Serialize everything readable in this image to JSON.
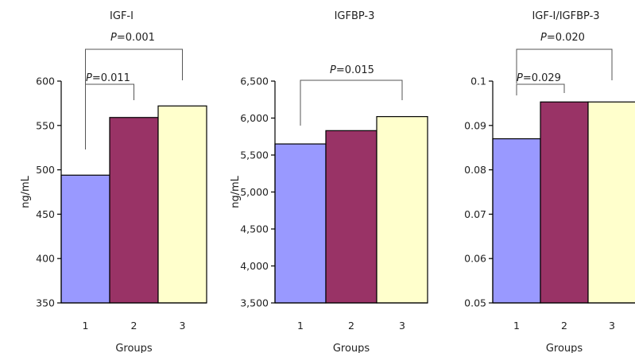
{
  "chart_data": [
    {
      "type": "bar",
      "title": "IGF-I",
      "xlabel": "Groups",
      "ylabel": "ng/mL",
      "categories": [
        "1",
        "2",
        "3"
      ],
      "values": [
        494,
        559,
        572
      ],
      "colors": [
        "#9999ff",
        "#993366",
        "#ffffcc"
      ],
      "ylim": [
        350,
        600
      ],
      "yticks": [
        350,
        400,
        450,
        500,
        550,
        600
      ],
      "ytick_labels": [
        "350",
        "400",
        "450",
        "500",
        "550",
        "600"
      ],
      "grid": false,
      "comparisons": [
        {
          "groups": [
            "1",
            "3"
          ],
          "p_prefix": "P",
          "p_value": "=0.001"
        },
        {
          "groups": [
            "1",
            "2"
          ],
          "p_prefix": "P",
          "p_value": "=0.011"
        }
      ]
    },
    {
      "type": "bar",
      "title": "IGFBP-3",
      "xlabel": "Groups",
      "ylabel": "ng/mL",
      "categories": [
        "1",
        "2",
        "3"
      ],
      "values": [
        5650,
        5830,
        6020
      ],
      "colors": [
        "#9999ff",
        "#993366",
        "#ffffcc"
      ],
      "ylim": [
        3500,
        6500
      ],
      "yticks": [
        3500,
        4000,
        4500,
        5000,
        5500,
        6000,
        6500
      ],
      "ytick_labels": [
        "3,500",
        "4,000",
        "4,500",
        "5,000",
        "5,500",
        "6,000",
        "6,500"
      ],
      "grid": false,
      "comparisons": [
        {
          "groups": [
            "1",
            "3"
          ],
          "p_prefix": "P",
          "p_value": "=0.015"
        }
      ]
    },
    {
      "type": "bar",
      "title": "IGF-I/IGFBP-3",
      "xlabel": "Groups",
      "ylabel": "",
      "categories": [
        "1",
        "2",
        "3"
      ],
      "values": [
        0.087,
        0.0953,
        0.0953
      ],
      "colors": [
        "#9999ff",
        "#993366",
        "#ffffcc"
      ],
      "ylim": [
        0.05,
        0.1
      ],
      "yticks": [
        0.05,
        0.06,
        0.07,
        0.08,
        0.09,
        0.1
      ],
      "ytick_labels": [
        "0.05",
        "0.06",
        "0.07",
        "0.08",
        "0.09",
        "0.1"
      ],
      "grid": false,
      "comparisons": [
        {
          "groups": [
            "1",
            "3"
          ],
          "p_prefix": "P",
          "p_value": "=0.020"
        },
        {
          "groups": [
            "1",
            "2"
          ],
          "p_prefix": "P",
          "p_value": "=0.029"
        }
      ]
    }
  ]
}
